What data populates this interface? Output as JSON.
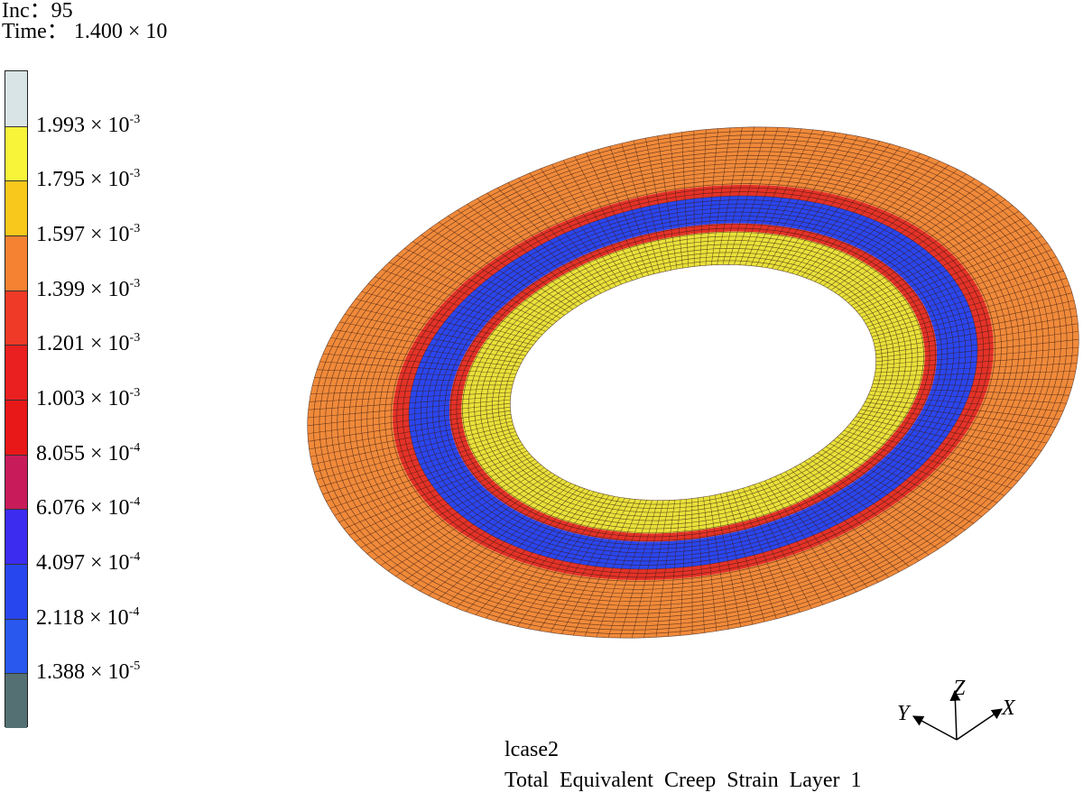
{
  "header": {
    "inc_label": "Inc：",
    "inc_value": "95",
    "time_label": "Time：",
    "time_value": "1.400 × 10"
  },
  "legend": {
    "levels": [
      {
        "mantissa": "1.993",
        "exponent": "-3"
      },
      {
        "mantissa": "1.795",
        "exponent": "-3"
      },
      {
        "mantissa": "1.597",
        "exponent": "-3"
      },
      {
        "mantissa": "1.399",
        "exponent": "-3"
      },
      {
        "mantissa": "1.201",
        "exponent": "-3"
      },
      {
        "mantissa": "1.003",
        "exponent": "-3"
      },
      {
        "mantissa": "8.055",
        "exponent": "-4"
      },
      {
        "mantissa": "6.076",
        "exponent": "-4"
      },
      {
        "mantissa": "4.097",
        "exponent": "-4"
      },
      {
        "mantissa": "2.118",
        "exponent": "-4"
      },
      {
        "mantissa": "1.388",
        "exponent": "-5"
      }
    ],
    "colors": [
      "#d9e4e6",
      "#f7f43a",
      "#f8c81c",
      "#f58232",
      "#ee3a26",
      "#ea2020",
      "#e81818",
      "#c81c5a",
      "#3c2cf0",
      "#2846ee",
      "#2858ee",
      "#547072"
    ]
  },
  "mesh_colors": {
    "outer": "#f08a3a",
    "red_band": "#e43228",
    "blue_band": "#2a46ee",
    "yellow_band": "#e8e23a",
    "grid_line": "#3a1a10"
  },
  "footer": {
    "case_name": "lcase2",
    "title": "Total Equivalent Creep Strain Layer 1"
  },
  "triad": {
    "x_label": "X",
    "y_label": "Y",
    "z_label": "Z"
  }
}
